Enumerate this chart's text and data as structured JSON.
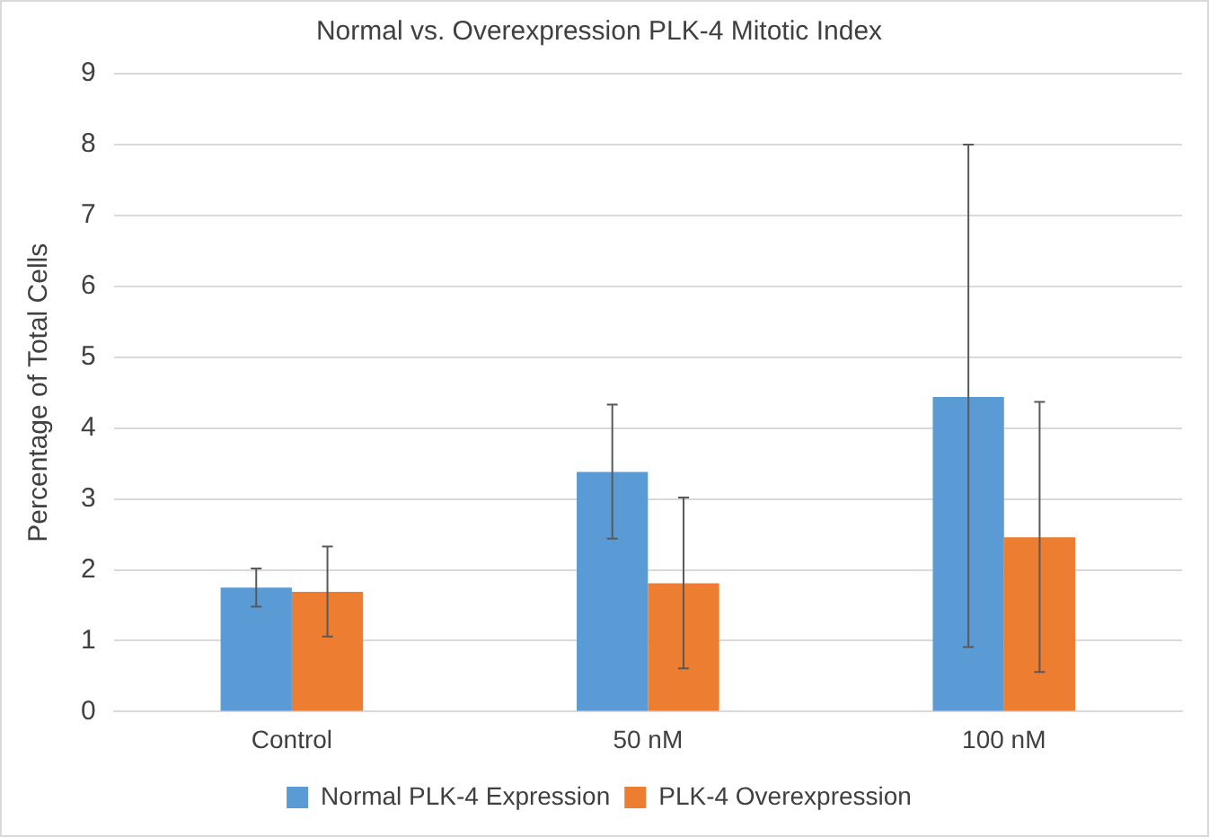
{
  "chart_data": {
    "type": "bar",
    "title": "Normal vs. Overexpression PLK-4 Mitotic Index",
    "ylabel": "Percentage of Total Cells",
    "categories": [
      "Control",
      "50 nM",
      "100 nM"
    ],
    "series": [
      {
        "name": "Normal PLK-4 Expression",
        "color": "#5b9bd5",
        "values": [
          1.75,
          3.38,
          4.44
        ],
        "errors": [
          [
            1.48,
            2.02
          ],
          [
            2.44,
            4.33
          ],
          [
            0.91,
            8.0
          ]
        ]
      },
      {
        "name": "PLK-4 Overexpression",
        "color": "#ed7d31",
        "values": [
          1.69,
          1.81,
          2.46
        ],
        "errors": [
          [
            1.06,
            2.33
          ],
          [
            0.61,
            3.02
          ],
          [
            0.56,
            4.37
          ]
        ]
      }
    ],
    "ylim": [
      0,
      9
    ],
    "yticks": [
      0,
      1,
      2,
      3,
      4,
      5,
      6,
      7,
      8,
      9
    ],
    "grid": "y",
    "legend": "bottom"
  }
}
